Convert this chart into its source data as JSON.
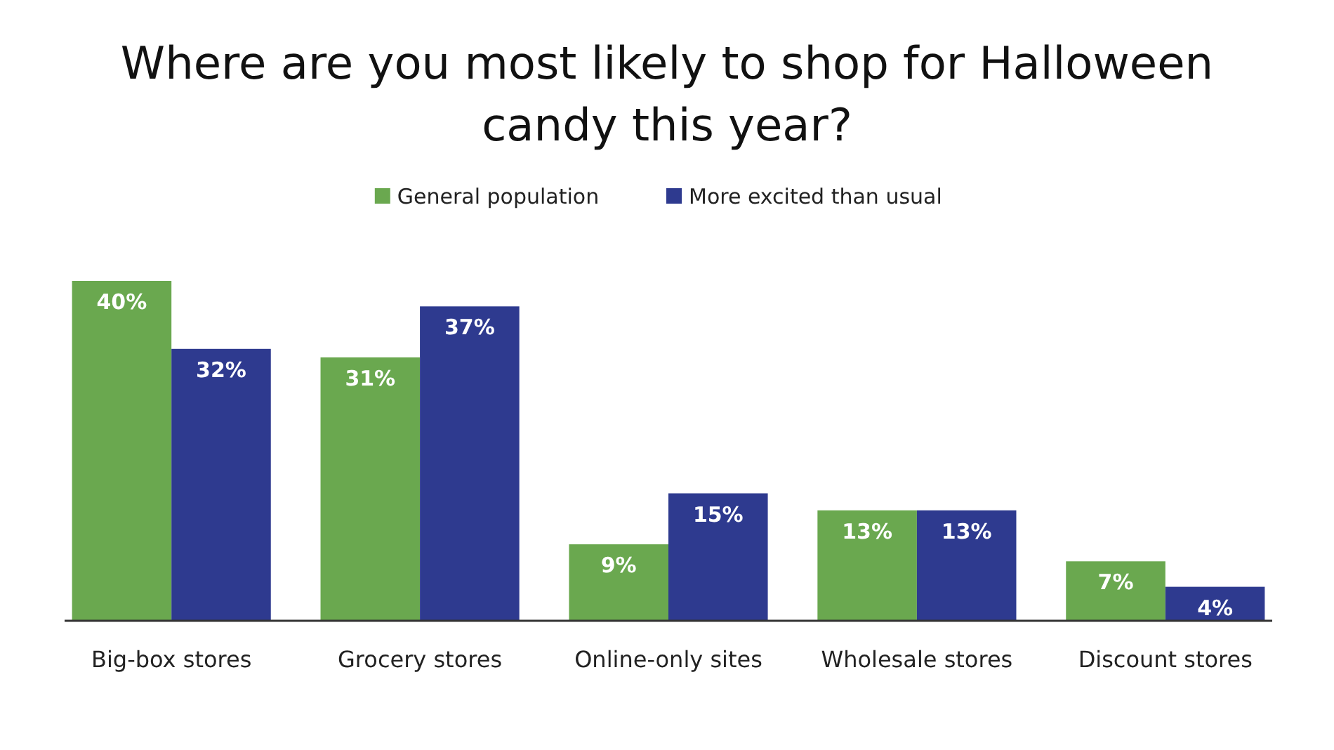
{
  "chart_data": {
    "type": "bar",
    "title": "Where are you most likely to shop for Halloween candy this year?",
    "categories": [
      "Big-box stores",
      "Grocery stores",
      "Online-only sites",
      "Wholesale stores",
      "Discount stores"
    ],
    "series": [
      {
        "name": "General population",
        "color": "#6aa84f",
        "values": [
          40,
          31,
          9,
          13,
          7
        ],
        "value_labels": [
          "40%",
          "31%",
          "9%",
          "13%",
          "7%"
        ]
      },
      {
        "name": "More excited than usual",
        "color": "#2e3a8f",
        "values": [
          32,
          37,
          15,
          13,
          4
        ],
        "value_labels": [
          "32%",
          "37%",
          "15%",
          "13%",
          "4%"
        ]
      }
    ],
    "legend": "top",
    "grid": false
  }
}
